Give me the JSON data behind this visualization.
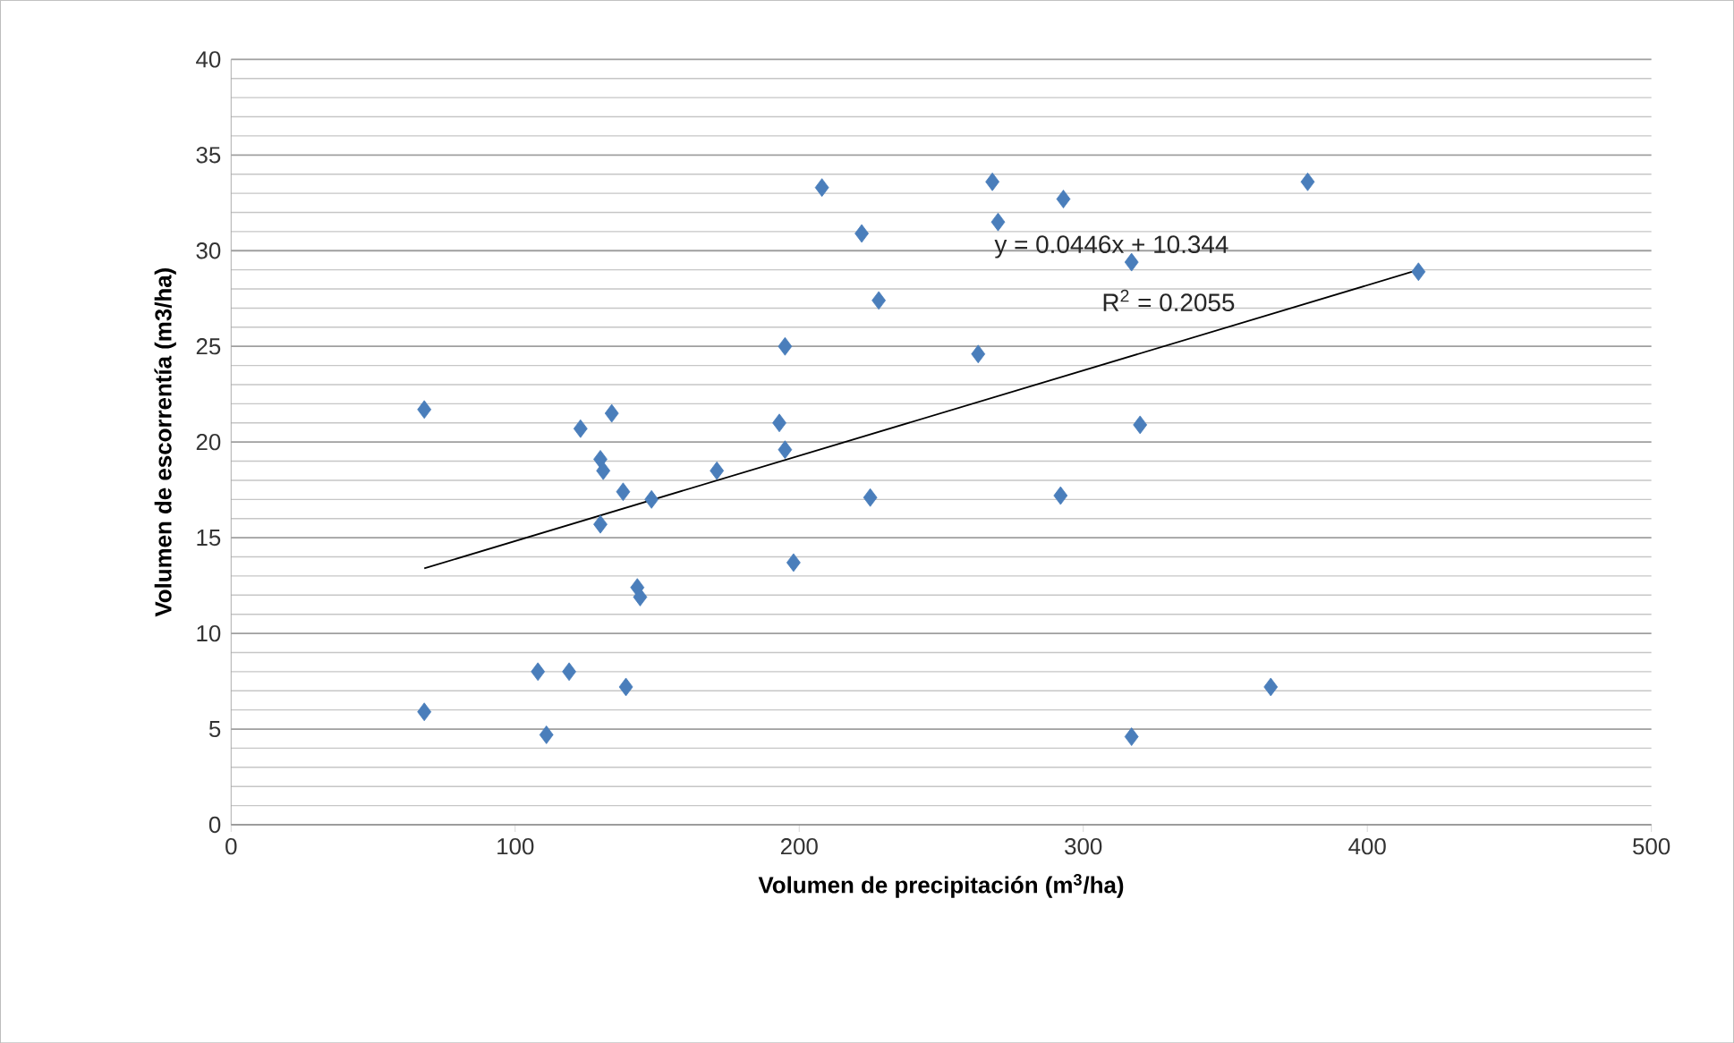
{
  "chart_data": {
    "type": "scatter",
    "xlabel": "Volumen de precipitación  (m$^{3}$/ha)",
    "ylabel": "Volumen de escorrentía  (m3/ha)",
    "xlim": [
      0,
      500
    ],
    "ylim": [
      0,
      40
    ],
    "xticks": [
      0,
      100,
      200,
      300,
      400,
      500
    ],
    "yticks": [
      0,
      5,
      10,
      15,
      20,
      25,
      30,
      35,
      40
    ],
    "grid": "y",
    "marker": "diamond",
    "series": [
      {
        "color": "#4a7ebb",
        "x": [
          68,
          68,
          108,
          119,
          111,
          139,
          123,
          134,
          130,
          131,
          130,
          138,
          148,
          143,
          144,
          171,
          193,
          195,
          195,
          198,
          208,
          222,
          225,
          228,
          263,
          268,
          270,
          293,
          292,
          317,
          320,
          317,
          366,
          379,
          418
        ],
        "values": [
          5.9,
          21.7,
          8.0,
          8.0,
          4.7,
          7.2,
          20.7,
          21.5,
          19.1,
          18.5,
          15.7,
          17.4,
          17.0,
          12.4,
          11.9,
          18.5,
          21.0,
          25.0,
          19.6,
          13.7,
          33.3,
          30.9,
          17.1,
          27.4,
          24.6,
          33.6,
          31.5,
          32.7,
          17.2,
          29.4,
          20.9,
          4.6,
          7.2,
          33.6,
          28.9
        ]
      },
      {
        "type": "line",
        "color": "#000000",
        "marker": "none",
        "x": [
          68,
          418
        ],
        "values": [
          13.4,
          29.0
        ]
      }
    ],
    "annotations": [
      "y = 0.0446x + 10.344",
      "R$^{2}$ = 0.2055"
    ]
  }
}
